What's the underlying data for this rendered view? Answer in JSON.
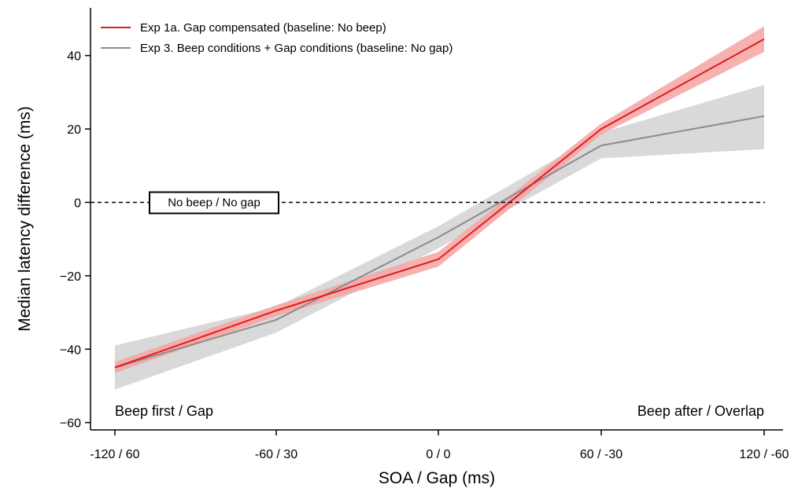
{
  "chart_data": {
    "type": "line",
    "xlabel": "SOA / Gap (ms)",
    "ylabel": "Median latency difference (ms)",
    "categories": [
      "-120 / 60",
      "-60 / 30",
      "0 / 0",
      "60 / -30",
      "120 / -60"
    ],
    "ylim": [
      -62,
      53
    ],
    "yticks": [
      -60,
      -40,
      -20,
      0,
      20,
      40
    ],
    "ytick_labels": [
      "−60",
      "−40",
      "−20",
      "0",
      "20",
      "40"
    ],
    "grid": false,
    "legend_position": "top-left",
    "series": [
      {
        "name": "Exp 1a. Gap compensated (baseline: No beep)",
        "color": "#e31a1c",
        "band_color": "#f4a3a3",
        "values": [
          -45,
          -29.5,
          -15.5,
          20,
          44.5
        ],
        "lower": [
          -46.5,
          -31,
          -17.5,
          18.5,
          41
        ],
        "upper": [
          -43.5,
          -28,
          -13.5,
          21.5,
          48
        ]
      },
      {
        "name": "Exp 3. Beep conditions + Gap conditions (baseline: No gap)",
        "color": "#8c8c8c",
        "band_color": "#d9d9d9",
        "values": [
          -45,
          -32,
          -9.5,
          15.5,
          23.5
        ],
        "lower": [
          -51,
          -35.5,
          -12.5,
          12,
          14.5
        ],
        "upper": [
          -39,
          -28.5,
          -6.5,
          19,
          32
        ]
      }
    ],
    "reference_line": {
      "y": 0,
      "style": "dashed",
      "label": "No beep / No gap"
    },
    "annotations": {
      "left": "Beep first / Gap",
      "right": "Beep after / Overlap"
    }
  }
}
